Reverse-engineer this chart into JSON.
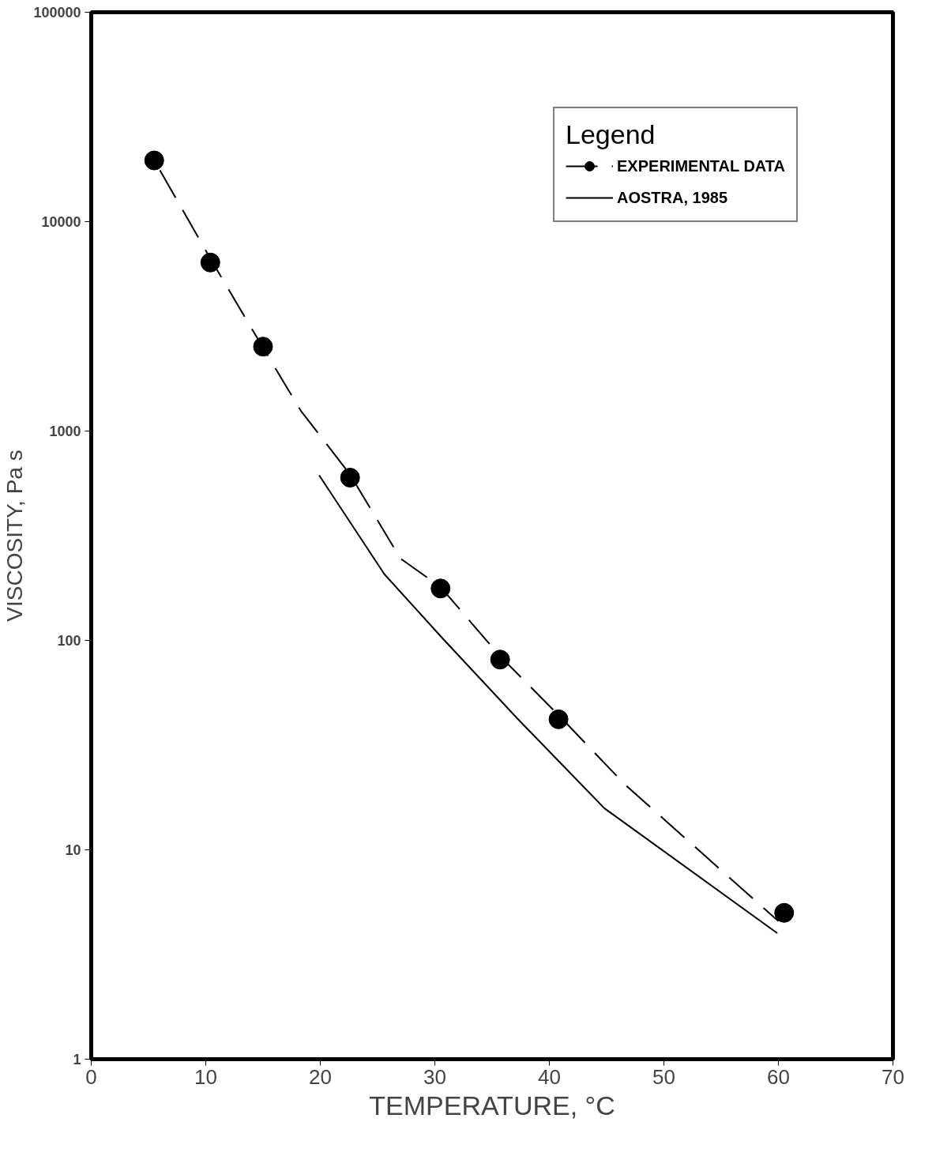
{
  "chart_data": {
    "type": "scatter",
    "xlabel": "TEMPERATURE, °C",
    "ylabel": "VISCOSITY, Pa s",
    "legend_title": "Legend",
    "log": "y",
    "xlim": [
      0,
      70
    ],
    "ylim": [
      1,
      100000
    ],
    "xticks": [
      0,
      10,
      20,
      30,
      40,
      50,
      60,
      70
    ],
    "yticks": [
      1,
      10,
      100,
      1000,
      10000,
      100000
    ],
    "grid": false,
    "legend": "top right",
    "series": [
      {
        "name": "EXPERIMENTAL DATA",
        "marker": "circle",
        "color": "#000000",
        "x": [
          5.5,
          10.4,
          15.0,
          22.6,
          30.5,
          35.7,
          40.8,
          60.5
        ],
        "values": [
          19600,
          6380,
          2530,
          599,
          177,
          81,
          42,
          5.0
        ]
      },
      {
        "type": "line",
        "line_style": "dashed",
        "color": "#000000",
        "x": [
          6,
          10.4,
          15.0,
          18.3,
          22.6,
          27,
          30.5,
          35.7,
          40.8,
          46.6,
          60
        ],
        "values": [
          17600,
          6660,
          2500,
          1250,
          620,
          246,
          180,
          84,
          44,
          20.5,
          4.56
        ]
      },
      {
        "name": "AOSTRA, 1985",
        "type": "line",
        "line_style": "solid",
        "color": "#000000",
        "x": [
          19.9,
          25.6,
          30.7,
          37.2,
          44.8,
          59.9
        ],
        "values": [
          615,
          207,
          102,
          42.4,
          15.8,
          4.0
        ]
      }
    ]
  }
}
